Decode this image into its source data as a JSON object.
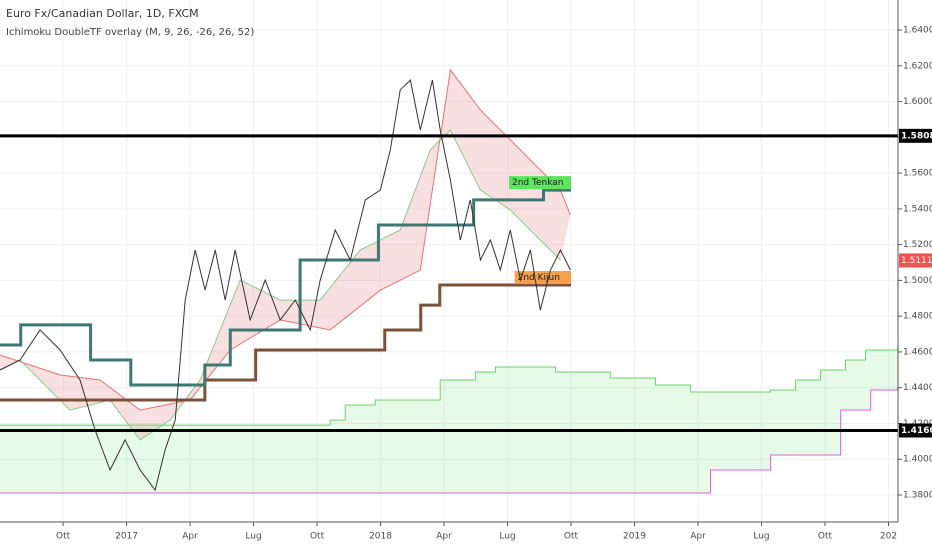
{
  "chart_data": {
    "type": "line",
    "title": "Euro Fx/Canadian Dollar, 1D, FXCM",
    "subtitle": "Ichimoku DoubleTF overlay (M, 9, 26, -26, 26, 52)",
    "xlim": [
      6.02,
      48.45
    ],
    "ylim": [
      1.3649,
      1.6568
    ],
    "grid": true,
    "xticks": [
      {
        "value": 9,
        "label": "Ott"
      },
      {
        "value": 12,
        "label": "2017"
      },
      {
        "value": 15,
        "label": "Apr"
      },
      {
        "value": 18,
        "label": "Lug"
      },
      {
        "value": 21,
        "label": "Ott"
      },
      {
        "value": 24,
        "label": "2018"
      },
      {
        "value": 27,
        "label": "Apr"
      },
      {
        "value": 30,
        "label": "Lug"
      },
      {
        "value": 33,
        "label": "Ott"
      },
      {
        "value": 36,
        "label": "2019"
      },
      {
        "value": 39,
        "label": "Apr"
      },
      {
        "value": 42,
        "label": "Lug"
      },
      {
        "value": 45,
        "label": "Ott"
      },
      {
        "value": 48,
        "label": "202"
      }
    ],
    "yticks": [
      {
        "value": 1.38,
        "label": "1.38000"
      },
      {
        "value": 1.4,
        "label": "1.40000"
      },
      {
        "value": 1.42,
        "label": "1.42000"
      },
      {
        "value": 1.44,
        "label": "1.44000"
      },
      {
        "value": 1.46,
        "label": "1.46000"
      },
      {
        "value": 1.48,
        "label": "1.48000"
      },
      {
        "value": 1.5,
        "label": "1.50000"
      },
      {
        "value": 1.52,
        "label": "1.52000"
      },
      {
        "value": 1.54,
        "label": "1.54000"
      },
      {
        "value": 1.56,
        "label": "1.56000"
      },
      {
        "value": 1.58,
        "label": "1.58000"
      },
      {
        "value": 1.6,
        "label": "1.60000"
      },
      {
        "value": 1.62,
        "label": "1.62000"
      },
      {
        "value": 1.64,
        "label": "1.64000"
      }
    ],
    "hlines": [
      1.58084,
      1.41608
    ],
    "last_price": 1.51115,
    "last_price_color": "#ef5350",
    "series": [
      {
        "color": "#8bc98b",
        "fill": "rgba(229,115,115,0.22)",
        "width": 1,
        "x": [
          6.02,
          6.97,
          9.33,
          11.22,
          12.64,
          14.06,
          15.47,
          17.37,
          19.26,
          21.15,
          23.04,
          24.93,
          26.35,
          27.3,
          28.72,
          30.13,
          31.55,
          32.5
        ],
        "values": [
          1.4499,
          1.4555,
          1.4275,
          1.4331,
          1.4108,
          1.4219,
          1.4443,
          1.5002,
          1.489,
          1.489,
          1.517,
          1.5282,
          1.5729,
          1.5841,
          1.5505,
          1.5394,
          1.5226,
          1.5114
        ]
      },
      {
        "color": "#e57373",
        "width": 1,
        "x": [
          6.02,
          8.86,
          10.75,
          12.64,
          15.0,
          16.9,
          19.26,
          21.62,
          24.0,
          25.88,
          27.3,
          28.72,
          30.61,
          32.5,
          32.97
        ],
        "values": [
          1.4583,
          1.4471,
          1.4443,
          1.4275,
          1.4331,
          1.4611,
          1.4779,
          1.4723,
          1.4946,
          1.5058,
          1.6177,
          1.5953,
          1.5729,
          1.5505,
          1.5366
        ]
      },
      {
        "color": "#6ad46a",
        "fill": "rgba(120,220,120,0.18)",
        "width": 1,
        "step": true,
        "x": [
          6.02,
          21.62,
          22.33,
          23.75,
          26.82,
          28.48,
          29.43,
          32.26,
          34.86,
          36.99,
          38.65,
          42.43,
          43.61,
          44.79,
          45.97,
          46.92,
          48.43
        ],
        "values": [
          1.4191,
          1.4219,
          1.4303,
          1.4331,
          1.4443,
          1.4488,
          1.4516,
          1.4488,
          1.4454,
          1.4415,
          1.4376,
          1.4387,
          1.4443,
          1.4499,
          1.4555,
          1.4611,
          1.4628
        ]
      },
      {
        "color": "#e060e0",
        "width": 1,
        "step": true,
        "x": [
          6.02,
          39.12,
          39.59,
          42.43,
          45.74,
          47.16,
          48.43
        ],
        "values": [
          1.3811,
          1.3811,
          1.394,
          1.4024,
          1.4275,
          1.4387,
          1.4398
        ]
      },
      {
        "name": "2nd Kijun",
        "color": "#7a5238",
        "width": 3,
        "step": true,
        "label_color": "#f5a04a",
        "x": [
          6.02,
          15.7,
          18.1,
          24.2,
          25.9,
          26.8,
          33.0
        ],
        "values": [
          1.4331,
          1.4443,
          1.4611,
          1.4723,
          1.4862,
          1.4974,
          1.4974
        ]
      },
      {
        "name": "2nd Tenkan",
        "color": "#3f7773",
        "width": 3,
        "step": true,
        "label_color": "#5ce65c",
        "x": [
          6.02,
          7.0,
          10.3,
          12.2,
          15.7,
          16.9,
          20.2,
          23.9,
          28.4,
          31.7,
          33.0
        ],
        "values": [
          1.4639,
          1.4751,
          1.4555,
          1.4415,
          1.4527,
          1.4723,
          1.5114,
          1.531,
          1.545,
          1.5505,
          1.5505
        ]
      },
      {
        "color": "#333333",
        "width": 1,
        "x": [
          6.02,
          6.97,
          7.91,
          8.86,
          9.8,
          10.51,
          11.22,
          11.93,
          12.64,
          13.35,
          13.82,
          14.3,
          14.77,
          15.24,
          15.71,
          16.19,
          16.66,
          17.13,
          17.84,
          18.55,
          19.26,
          19.97,
          20.68,
          21.15,
          21.86,
          22.57,
          23.28,
          23.99,
          24.46,
          24.93,
          25.41,
          25.88,
          26.45,
          26.82,
          27.3,
          27.77,
          28.24,
          28.72,
          29.19,
          29.66,
          30.13,
          30.61,
          31.08,
          31.55,
          32.03,
          32.5,
          32.97
        ],
        "values": [
          1.4499,
          1.4555,
          1.4723,
          1.4611,
          1.4443,
          1.4164,
          1.394,
          1.4108,
          1.394,
          1.3828,
          1.4052,
          1.4219,
          1.489,
          1.517,
          1.4946,
          1.517,
          1.489,
          1.517,
          1.4779,
          1.5002,
          1.4779,
          1.489,
          1.4723,
          1.5002,
          1.5282,
          1.5114,
          1.545,
          1.5505,
          1.5729,
          1.6065,
          1.612,
          1.5841,
          1.612,
          1.5841,
          1.5561,
          1.5226,
          1.545,
          1.5114,
          1.5226,
          1.5058,
          1.5282,
          1.5002,
          1.517,
          1.4834,
          1.5058,
          1.517,
          1.5058
        ]
      }
    ]
  }
}
